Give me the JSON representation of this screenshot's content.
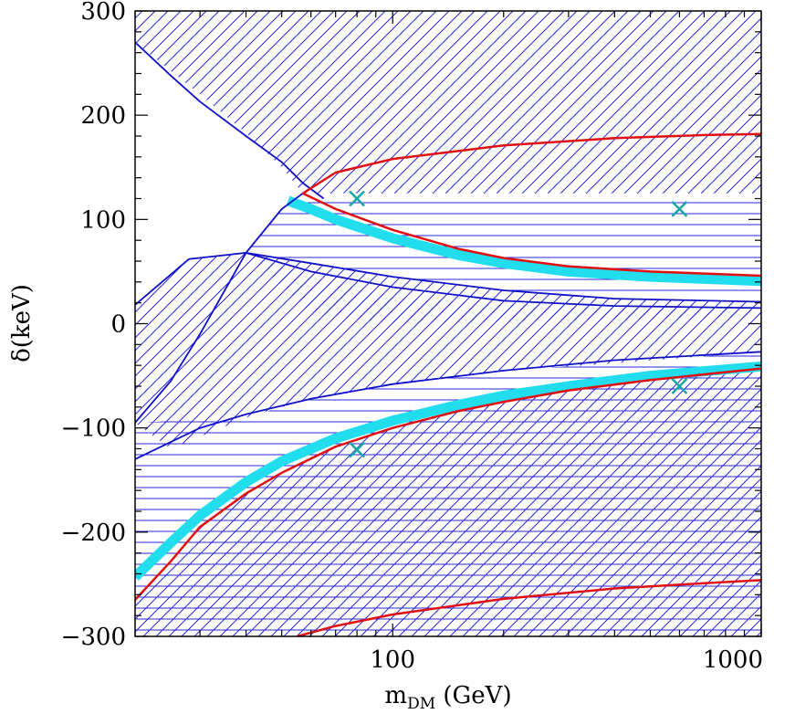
{
  "chart_data": {
    "type": "line",
    "title": "",
    "xlabel": "m",
    "xlabel_sub": "DM",
    "xlabel_unit": " (GeV)",
    "ylabel": "δ(keV)",
    "xscale": "log",
    "xlim": [
      20,
      1000
    ],
    "ylim": [
      -300,
      300
    ],
    "x_ticks": [
      {
        "value": 100,
        "label": "100"
      },
      {
        "value": 1000,
        "label": "1000"
      }
    ],
    "y_ticks": [
      {
        "value": 300,
        "label": "300"
      },
      {
        "value": 200,
        "label": "200"
      },
      {
        "value": 100,
        "label": "100"
      },
      {
        "value": 0,
        "label": "0"
      },
      {
        "value": -100,
        "label": "−100"
      },
      {
        "value": -200,
        "label": "−200"
      },
      {
        "value": -300,
        "label": "−300"
      }
    ],
    "grid": false,
    "legend": "none",
    "colors": {
      "hatch": "#1f1fd6",
      "boundary": "#1010c8",
      "red": "#e01010",
      "band": "#22ddee",
      "marker": "#1aa6a6"
    },
    "regions": [
      {
        "id": "upper-diag",
        "hatch": "diagonal",
        "upper": [
          [
            20,
            300
          ],
          [
            1000,
            300
          ]
        ],
        "lower": [
          [
            20,
            270
          ],
          [
            30,
            220
          ],
          [
            40,
            183
          ],
          [
            50,
            150
          ],
          [
            57,
            125
          ],
          [
            70,
            125
          ],
          [
            100,
            125
          ],
          [
            200,
            125
          ],
          [
            500,
            125
          ],
          [
            1000,
            125
          ]
        ]
      },
      {
        "id": "upper-horiz",
        "hatch": "horizontal",
        "upper": [
          [
            40,
            68
          ],
          [
            45,
            90
          ],
          [
            50,
            110
          ],
          [
            57,
            125
          ],
          [
            100,
            125
          ],
          [
            1000,
            125
          ]
        ],
        "lower": [
          [
            40,
            68
          ],
          [
            60,
            58
          ],
          [
            100,
            45
          ],
          [
            200,
            32
          ],
          [
            400,
            24
          ],
          [
            1000,
            21
          ]
        ]
      },
      {
        "id": "upper-chevron",
        "hatch": "diagonal",
        "upper": [
          [
            20,
            18
          ],
          [
            28,
            62
          ],
          [
            40,
            68
          ],
          [
            60,
            58
          ],
          [
            100,
            45
          ],
          [
            200,
            32
          ],
          [
            400,
            24
          ],
          [
            1000,
            21
          ]
        ],
        "lower": [
          [
            20,
            -25
          ],
          [
            28,
            10
          ],
          [
            40,
            68
          ],
          [
            60,
            10
          ],
          [
            100,
            0
          ],
          [
            200,
            2
          ],
          [
            500,
            5
          ],
          [
            1000,
            6
          ]
        ]
      },
      {
        "id": "middle-diag",
        "hatch": "diagonal",
        "upper": [
          [
            20,
            -25
          ],
          [
            28,
            10
          ],
          [
            40,
            68
          ],
          [
            60,
            45
          ],
          [
            100,
            25
          ],
          [
            200,
            18
          ],
          [
            500,
            15
          ],
          [
            1000,
            15
          ]
        ],
        "lower": [
          [
            20,
            -95
          ],
          [
            25,
            -120
          ],
          [
            40,
            -90
          ],
          [
            60,
            -72
          ],
          [
            100,
            -58
          ],
          [
            200,
            -45
          ],
          [
            400,
            -38
          ],
          [
            1000,
            -27
          ]
        ]
      },
      {
        "id": "lower-horiz",
        "hatch": "horizontal",
        "upper": [
          [
            20,
            -95
          ],
          [
            40,
            -90
          ],
          [
            60,
            -72
          ],
          [
            100,
            -58
          ],
          [
            200,
            -45
          ],
          [
            400,
            -38
          ],
          [
            1000,
            -27
          ]
        ],
        "lower": [
          [
            20,
            -300
          ],
          [
            1000,
            -300
          ]
        ]
      },
      {
        "id": "lower-diag",
        "hatch": "diagonal",
        "upper": [
          [
            20,
            -265
          ],
          [
            30,
            -195
          ],
          [
            45,
            -150
          ],
          [
            70,
            -118
          ],
          [
            100,
            -100
          ],
          [
            200,
            -72
          ],
          [
            500,
            -52
          ],
          [
            1000,
            -43
          ]
        ],
        "lower": [
          [
            20,
            -300
          ],
          [
            1000,
            -300
          ]
        ]
      }
    ],
    "blue_curves": [
      {
        "name": "",
        "points": [
          [
            20,
            270
          ],
          [
            25,
            238
          ],
          [
            30,
            213
          ],
          [
            40,
            180
          ],
          [
            50,
            155
          ],
          [
            57,
            135
          ],
          [
            65,
            120
          ]
        ]
      },
      {
        "name": "",
        "points": [
          [
            20,
            18
          ],
          [
            28,
            62
          ],
          [
            40,
            68
          ],
          [
            60,
            50
          ],
          [
            100,
            35
          ],
          [
            200,
            22
          ],
          [
            400,
            17
          ],
          [
            1000,
            15
          ]
        ]
      },
      {
        "name": "",
        "points": [
          [
            20,
            -95
          ],
          [
            25,
            -55
          ],
          [
            30,
            -10
          ],
          [
            40,
            68
          ],
          [
            50,
            110
          ],
          [
            57,
            125
          ]
        ]
      },
      {
        "name": "",
        "points": [
          [
            20,
            -130
          ],
          [
            30,
            -100
          ],
          [
            40,
            -87
          ],
          [
            60,
            -72
          ],
          [
            100,
            -58
          ],
          [
            200,
            -45
          ],
          [
            400,
            -35
          ],
          [
            1000,
            -27
          ]
        ]
      },
      {
        "name": "",
        "points": [
          [
            40,
            68
          ],
          [
            60,
            58
          ],
          [
            100,
            45
          ],
          [
            200,
            32
          ],
          [
            400,
            24
          ],
          [
            1000,
            21
          ]
        ]
      }
    ],
    "red_curves": [
      {
        "name": "",
        "points": [
          [
            57,
            125
          ],
          [
            70,
            145
          ],
          [
            100,
            158
          ],
          [
            200,
            171
          ],
          [
            400,
            178
          ],
          [
            700,
            181
          ],
          [
            1000,
            182
          ]
        ]
      },
      {
        "name": "",
        "points": [
          [
            57,
            125
          ],
          [
            70,
            110
          ],
          [
            100,
            90
          ],
          [
            150,
            72
          ],
          [
            200,
            63
          ],
          [
            300,
            55
          ],
          [
            500,
            50
          ],
          [
            1000,
            46
          ]
        ]
      },
      {
        "name": "",
        "points": [
          [
            20,
            -265
          ],
          [
            25,
            -228
          ],
          [
            30,
            -195
          ],
          [
            40,
            -163
          ],
          [
            50,
            -143
          ],
          [
            70,
            -118
          ],
          [
            100,
            -100
          ],
          [
            150,
            -84
          ],
          [
            200,
            -75
          ],
          [
            300,
            -64
          ],
          [
            500,
            -54
          ],
          [
            1000,
            -43
          ]
        ]
      },
      {
        "name": "",
        "points": [
          [
            55,
            -300
          ],
          [
            70,
            -290
          ],
          [
            100,
            -279
          ],
          [
            200,
            -264
          ],
          [
            400,
            -254
          ],
          [
            700,
            -249
          ],
          [
            1000,
            -246
          ]
        ]
      }
    ],
    "cyan_bands": [
      {
        "name": "",
        "points": [
          [
            52,
            118
          ],
          [
            60,
            110
          ],
          [
            70,
            100
          ],
          [
            100,
            82
          ],
          [
            150,
            66
          ],
          [
            200,
            58
          ],
          [
            300,
            50
          ],
          [
            500,
            45
          ],
          [
            1000,
            41
          ]
        ]
      },
      {
        "name": "",
        "points": [
          [
            20,
            -243
          ],
          [
            25,
            -210
          ],
          [
            30,
            -184
          ],
          [
            40,
            -152
          ],
          [
            50,
            -132
          ],
          [
            70,
            -110
          ],
          [
            100,
            -93
          ],
          [
            150,
            -78
          ],
          [
            200,
            -69
          ],
          [
            300,
            -60
          ],
          [
            500,
            -50
          ],
          [
            1000,
            -41
          ]
        ]
      }
    ],
    "markers": [
      {
        "x": 80,
        "y": 120
      },
      {
        "x": 600,
        "y": 110
      },
      {
        "x": 600,
        "y": -60
      },
      {
        "x": 80,
        "y": -121
      }
    ]
  }
}
